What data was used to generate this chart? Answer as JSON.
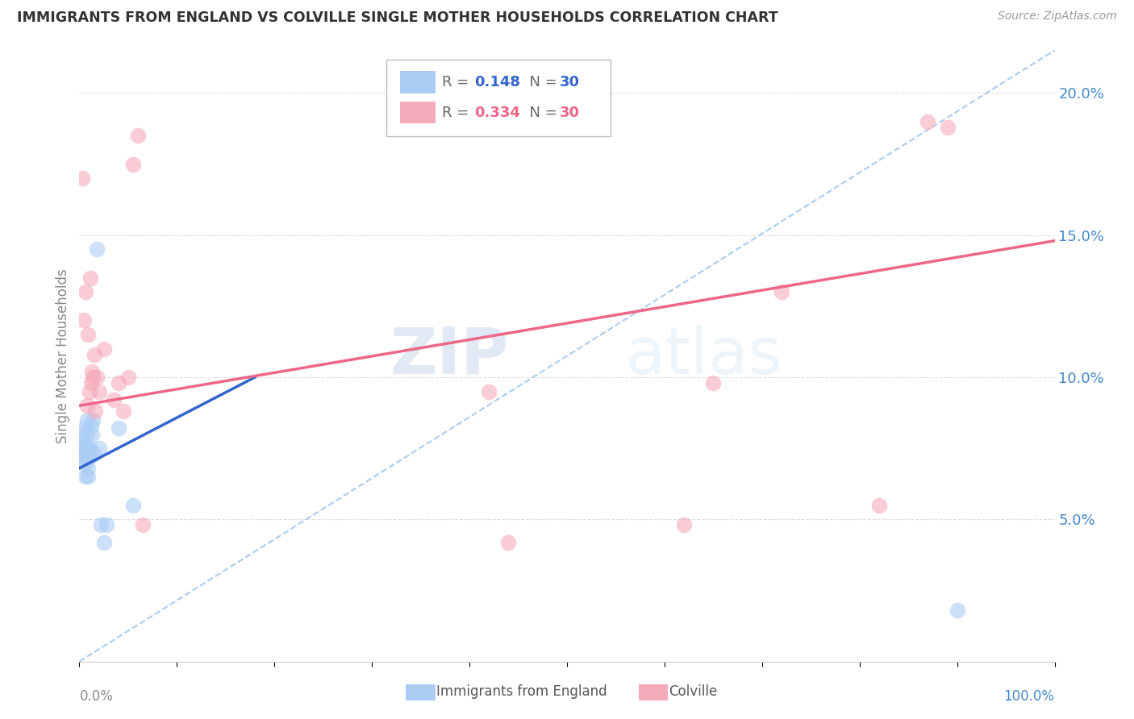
{
  "title": "IMMIGRANTS FROM ENGLAND VS COLVILLE SINGLE MOTHER HOUSEHOLDS CORRELATION CHART",
  "source": "Source: ZipAtlas.com",
  "ylabel": "Single Mother Households",
  "y_tick_positions": [
    0.05,
    0.1,
    0.15,
    0.2
  ],
  "y_tick_labels": [
    "5.0%",
    "10.0%",
    "15.0%",
    "20.0%"
  ],
  "x_range": [
    0,
    1.0
  ],
  "y_range": [
    0,
    0.215
  ],
  "legend_color1": "#AACCF5",
  "legend_color2": "#F5AABB",
  "watermark_zip": "ZIP",
  "watermark_atlas": "atlas",
  "blue_scatter_color": "#AACCF5",
  "pink_scatter_color": "#F5AABB",
  "blue_line_color": "#3366CC",
  "pink_line_color": "#EE6688",
  "dashed_line_color": "#AACCEE",
  "blue_points_x": [
    0.003,
    0.003,
    0.004,
    0.004,
    0.005,
    0.005,
    0.005,
    0.006,
    0.006,
    0.007,
    0.007,
    0.008,
    0.008,
    0.009,
    0.009,
    0.01,
    0.01,
    0.011,
    0.012,
    0.013,
    0.014,
    0.015,
    0.018,
    0.02,
    0.022,
    0.025,
    0.028,
    0.04,
    0.055,
    0.9
  ],
  "blue_points_y": [
    0.075,
    0.08,
    0.072,
    0.078,
    0.07,
    0.075,
    0.082,
    0.065,
    0.07,
    0.073,
    0.076,
    0.08,
    0.085,
    0.065,
    0.068,
    0.072,
    0.075,
    0.074,
    0.083,
    0.08,
    0.085,
    0.073,
    0.145,
    0.075,
    0.048,
    0.042,
    0.048,
    0.082,
    0.055,
    0.018
  ],
  "pink_points_x": [
    0.003,
    0.005,
    0.006,
    0.008,
    0.009,
    0.01,
    0.011,
    0.012,
    0.013,
    0.014,
    0.015,
    0.016,
    0.018,
    0.02,
    0.025,
    0.035,
    0.04,
    0.045,
    0.05,
    0.055,
    0.06,
    0.065,
    0.42,
    0.44,
    0.62,
    0.65,
    0.72,
    0.82,
    0.87,
    0.89
  ],
  "pink_points_y": [
    0.17,
    0.12,
    0.13,
    0.09,
    0.115,
    0.095,
    0.135,
    0.098,
    0.102,
    0.1,
    0.108,
    0.088,
    0.1,
    0.095,
    0.11,
    0.092,
    0.098,
    0.088,
    0.1,
    0.175,
    0.185,
    0.048,
    0.095,
    0.042,
    0.048,
    0.098,
    0.13,
    0.055,
    0.19,
    0.188
  ],
  "blue_trend_x": [
    0.0,
    0.18
  ],
  "blue_trend_y": [
    0.068,
    0.1
  ],
  "pink_trend_x": [
    0.0,
    1.0
  ],
  "pink_trend_y": [
    0.09,
    0.148
  ],
  "dashed_trend_x": [
    0.0,
    1.0
  ],
  "dashed_trend_y": [
    0.0,
    0.215
  ],
  "grid_color": "#DDDDDD",
  "title_color": "#333333",
  "source_color": "#999999",
  "tick_color": "#4488CC",
  "axis_label_color": "#888888"
}
